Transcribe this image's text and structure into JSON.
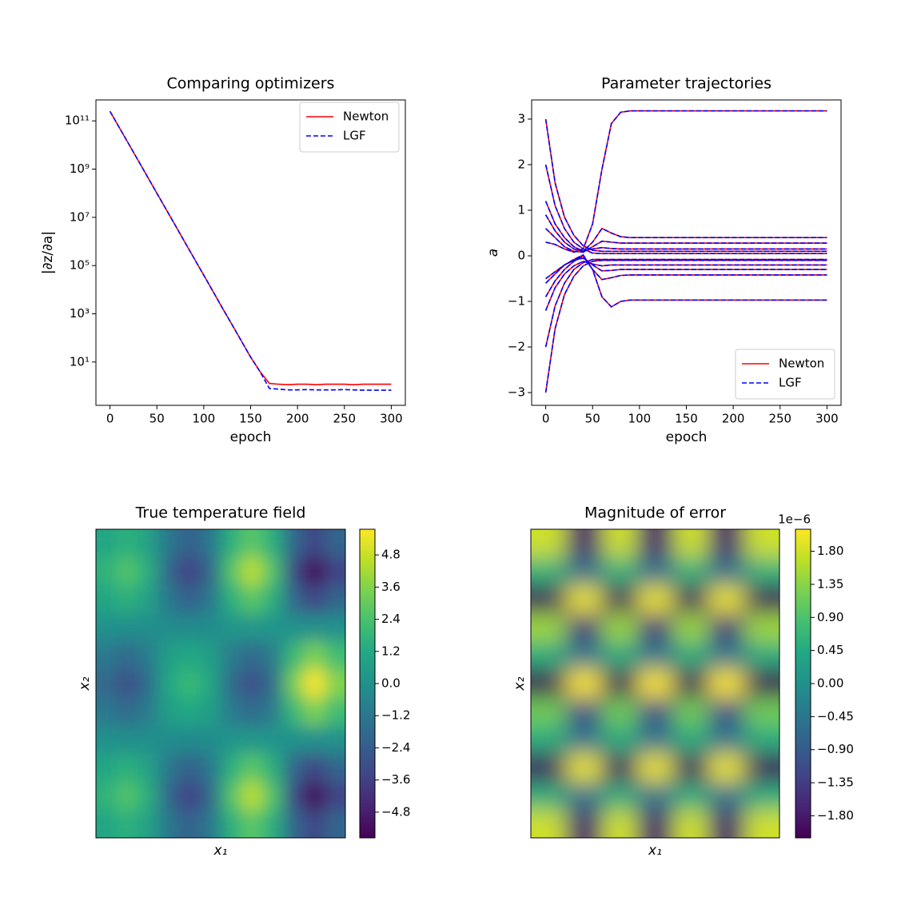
{
  "chart_data": [
    {
      "type": "line",
      "title": "Comparing optimizers",
      "xlabel": "epoch",
      "ylabel": "|∂z/∂a|",
      "yscale": "log",
      "legend": "upper right",
      "x": [
        0,
        10,
        20,
        30,
        40,
        50,
        60,
        70,
        80,
        90,
        100,
        110,
        120,
        130,
        140,
        150,
        160,
        170,
        180,
        190,
        200,
        210,
        220,
        230,
        240,
        250,
        260,
        270,
        280,
        290,
        300
      ],
      "series": [
        {
          "name": "Newton",
          "color": "#ff0000",
          "linestyle": "solid",
          "values": [
            250000000000.0,
            52000000000.0,
            11000000000.0,
            2300000000.0,
            480000000.0,
            100000000.0,
            21000000.0,
            4400000.0,
            910000.0,
            190000.0,
            40000.0,
            8300,
            1700,
            363,
            76,
            16,
            4,
            1.3,
            1.2,
            1.15,
            1.2,
            1.2,
            1.15,
            1.2,
            1.2,
            1.2,
            1.15,
            1.2,
            1.2,
            1.2,
            1.2
          ]
        },
        {
          "name": "LGF",
          "color": "#0000ff",
          "linestyle": "dashed",
          "values": [
            250000000000.0,
            52000000000.0,
            11000000000.0,
            2300000000.0,
            480000000.0,
            100000000.0,
            21000000.0,
            4400000.0,
            910000.0,
            190000.0,
            40000.0,
            8300,
            1700,
            363,
            76,
            16,
            4,
            0.8,
            0.75,
            0.7,
            0.7,
            0.72,
            0.7,
            0.7,
            0.7,
            0.72,
            0.7,
            0.68,
            0.68,
            0.68,
            0.68
          ]
        }
      ],
      "xlim": [
        -15,
        315
      ],
      "ylim": [
        0.16,
        740000000000.0
      ],
      "xticks": [
        0,
        50,
        100,
        150,
        200,
        250,
        300
      ],
      "yticks": [
        {
          "value": 10,
          "label": "10¹"
        },
        {
          "value": 1000,
          "label": "10³"
        },
        {
          "value": 100000,
          "label": "10⁵"
        },
        {
          "value": 10000000,
          "label": "10⁷"
        },
        {
          "value": 1000000000,
          "label": "10⁹"
        },
        {
          "value": 100000000000,
          "label": "10¹¹"
        }
      ]
    },
    {
      "type": "line",
      "title": "Parameter trajectories",
      "xlabel": "epoch",
      "ylabel": "a",
      "yscale": "linear",
      "legend": "lower right",
      "x": [
        0,
        10,
        20,
        30,
        40,
        50,
        60,
        70,
        80,
        90,
        100,
        150,
        200,
        250,
        300
      ],
      "series": [
        {
          "name": "Newton",
          "color": "#ff0000",
          "linestyle": "solid",
          "values": [
            [
              0.3,
              0.25,
              0.15,
              0.08,
              0.15,
              0.7,
              1.9,
              2.9,
              3.15,
              3.18,
              3.18,
              3.18,
              3.18,
              3.18,
              3.18
            ],
            [
              -0.5,
              -0.35,
              -0.2,
              -0.08,
              0.02,
              -0.3,
              -0.9,
              -1.12,
              -1.0,
              -0.97,
              -0.97,
              -0.97,
              -0.97,
              -0.97,
              -0.97
            ],
            [
              0.9,
              0.55,
              0.3,
              0.15,
              0.1,
              0.3,
              0.6,
              0.5,
              0.42,
              0.4,
              0.4,
              0.4,
              0.4,
              0.4,
              0.4
            ],
            [
              -0.9,
              -0.55,
              -0.3,
              -0.12,
              0,
              -0.3,
              -0.52,
              -0.48,
              -0.43,
              -0.42,
              -0.42,
              -0.42,
              -0.42,
              -0.42,
              -0.42
            ],
            [
              0.6,
              0.4,
              0.2,
              0.1,
              0.08,
              0.2,
              0.32,
              0.3,
              0.28,
              0.28,
              0.28,
              0.28,
              0.28,
              0.28,
              0.28
            ],
            [
              -0.6,
              -0.4,
              -0.2,
              -0.1,
              -0.05,
              -0.2,
              -0.33,
              -0.32,
              -0.3,
              -0.3,
              -0.3,
              -0.3,
              -0.3,
              -0.3,
              -0.3
            ],
            [
              3,
              1.6,
              0.85,
              0.45,
              0.22,
              0.12,
              0.1,
              0.1,
              0.1,
              0.1,
              0.1,
              0.1,
              0.1,
              0.1,
              0.1
            ],
            [
              -3,
              -1.6,
              -0.85,
              -0.45,
              -0.22,
              -0.12,
              -0.1,
              -0.1,
              -0.1,
              -0.1,
              -0.1,
              -0.1,
              -0.1,
              -0.1,
              -0.1
            ],
            [
              2,
              1.1,
              0.6,
              0.3,
              0.15,
              0.06,
              0.05,
              0.05,
              0.05,
              0.05,
              0.05,
              0.05,
              0.05,
              0.05,
              0.05
            ],
            [
              -2,
              -1.1,
              -0.6,
              -0.3,
              -0.15,
              -0.08,
              -0.08,
              -0.08,
              -0.08,
              -0.08,
              -0.08,
              -0.08,
              -0.08,
              -0.08,
              -0.08
            ],
            [
              1.2,
              0.7,
              0.4,
              0.2,
              0.1,
              0.15,
              0.18,
              0.16,
              0.15,
              0.15,
              0.15,
              0.15,
              0.15,
              0.15,
              0.15
            ],
            [
              -1.2,
              -0.7,
              -0.4,
              -0.22,
              -0.12,
              -0.18,
              -0.22,
              -0.2,
              -0.2,
              -0.2,
              -0.2,
              -0.2,
              -0.2,
              -0.2,
              -0.2
            ]
          ]
        },
        {
          "name": "LGF",
          "color": "#0000ff",
          "linestyle": "dashed",
          "values": [
            [
              0.3,
              0.25,
              0.15,
              0.08,
              0.15,
              0.7,
              1.9,
              2.9,
              3.15,
              3.18,
              3.18,
              3.18,
              3.18,
              3.18,
              3.18
            ],
            [
              -0.5,
              -0.35,
              -0.2,
              -0.08,
              0.02,
              -0.3,
              -0.9,
              -1.12,
              -1.0,
              -0.97,
              -0.97,
              -0.97,
              -0.97,
              -0.97,
              -0.97
            ],
            [
              0.9,
              0.55,
              0.3,
              0.15,
              0.1,
              0.3,
              0.6,
              0.5,
              0.42,
              0.4,
              0.4,
              0.4,
              0.4,
              0.4,
              0.4
            ],
            [
              -0.9,
              -0.55,
              -0.3,
              -0.12,
              0,
              -0.3,
              -0.52,
              -0.48,
              -0.43,
              -0.42,
              -0.42,
              -0.42,
              -0.42,
              -0.42,
              -0.42
            ],
            [
              0.6,
              0.4,
              0.2,
              0.1,
              0.08,
              0.2,
              0.32,
              0.3,
              0.28,
              0.28,
              0.28,
              0.28,
              0.28,
              0.28,
              0.28
            ],
            [
              -0.6,
              -0.4,
              -0.2,
              -0.1,
              -0.05,
              -0.2,
              -0.33,
              -0.32,
              -0.3,
              -0.3,
              -0.3,
              -0.3,
              -0.3,
              -0.3,
              -0.3
            ],
            [
              3,
              1.6,
              0.85,
              0.45,
              0.22,
              0.12,
              0.1,
              0.1,
              0.1,
              0.1,
              0.1,
              0.1,
              0.1,
              0.1,
              0.1
            ],
            [
              -3,
              -1.6,
              -0.85,
              -0.45,
              -0.22,
              -0.12,
              -0.1,
              -0.1,
              -0.1,
              -0.1,
              -0.1,
              -0.1,
              -0.1,
              -0.1,
              -0.1
            ],
            [
              2,
              1.1,
              0.6,
              0.3,
              0.15,
              0.06,
              0.05,
              0.05,
              0.05,
              0.05,
              0.05,
              0.05,
              0.05,
              0.05,
              0.05
            ],
            [
              -2,
              -1.1,
              -0.6,
              -0.3,
              -0.15,
              -0.08,
              -0.08,
              -0.08,
              -0.08,
              -0.08,
              -0.08,
              -0.08,
              -0.08,
              -0.08,
              -0.08
            ],
            [
              1.2,
              0.7,
              0.4,
              0.2,
              0.1,
              0.15,
              0.18,
              0.16,
              0.15,
              0.15,
              0.15,
              0.15,
              0.15,
              0.15,
              0.15
            ],
            [
              -1.2,
              -0.7,
              -0.4,
              -0.22,
              -0.12,
              -0.18,
              -0.22,
              -0.2,
              -0.2,
              -0.2,
              -0.2,
              -0.2,
              -0.2,
              -0.2,
              -0.2
            ]
          ]
        }
      ],
      "xlim": [
        -15,
        315
      ],
      "ylim": [
        -3.28,
        3.42
      ],
      "xticks": [
        0,
        50,
        100,
        150,
        200,
        250,
        300
      ],
      "yticks": [
        {
          "value": -3,
          "label": "−3"
        },
        {
          "value": -2,
          "label": "−2"
        },
        {
          "value": -1,
          "label": "−1"
        },
        0,
        1,
        2,
        3
      ]
    },
    {
      "type": "heatmap",
      "title": "True temperature field",
      "xlabel": "x₁",
      "ylabel": "x₂",
      "colormap": "viridis",
      "z": [
        [
          1.0,
          1.6,
          0.8,
          -1.2,
          -2.2,
          -1.2,
          1.5,
          2.8,
          1.5,
          -1.9,
          -3.4,
          -2.0
        ],
        [
          1.6,
          2.6,
          1.4,
          -2.0,
          -3.6,
          -2.0,
          2.5,
          4.6,
          2.5,
          -3.1,
          -5.6,
          -3.4
        ],
        [
          1.0,
          1.6,
          0.8,
          -1.2,
          -2.2,
          -1.2,
          1.5,
          2.8,
          1.5,
          -1.9,
          -3.4,
          -2.0
        ],
        [
          0,
          -0.1,
          -0.1,
          -0.2,
          -0.3,
          -0.2,
          0.2,
          0.3,
          0.2,
          0,
          0,
          0
        ],
        [
          -1.1,
          -1.8,
          -1.0,
          0.7,
          1.2,
          0.7,
          -1.0,
          -1.8,
          -1.0,
          1.9,
          3.5,
          2.1
        ],
        [
          -1.8,
          -3.0,
          -1.7,
          1.1,
          2.0,
          1.1,
          -1.7,
          -3.0,
          -1.7,
          3.2,
          5.8,
          3.5
        ],
        [
          -1.1,
          -1.8,
          -1.0,
          0.7,
          1.2,
          0.7,
          -1.0,
          -1.8,
          -1.0,
          1.9,
          3.5,
          2.1
        ],
        [
          0,
          -0.1,
          -0.1,
          -0.2,
          -0.3,
          -0.2,
          0.2,
          0.3,
          0.2,
          0,
          0,
          0
        ],
        [
          1.0,
          1.6,
          0.8,
          -1.2,
          -2.2,
          -1.2,
          1.5,
          2.8,
          1.5,
          -1.9,
          -3.4,
          -2.0
        ],
        [
          1.6,
          2.6,
          1.4,
          -2.0,
          -3.6,
          -2.0,
          2.5,
          4.6,
          2.5,
          -3.1,
          -5.6,
          -3.4
        ],
        [
          1.0,
          1.6,
          0.8,
          -1.2,
          -2.2,
          -1.2,
          1.5,
          2.8,
          1.5,
          -1.9,
          -3.4,
          -2.0
        ]
      ],
      "zlim": [
        -5.76,
        5.76
      ],
      "colorbar_ticks": [
        {
          "value": -4.8,
          "label": "−4.8"
        },
        {
          "value": -3.6,
          "label": "−3.6"
        },
        {
          "value": -2.4,
          "label": "−2.4"
        },
        {
          "value": -1.2,
          "label": "−1.2"
        },
        {
          "value": 0,
          "label": "0.0"
        },
        1.2,
        2.4,
        3.6,
        4.8
      ]
    },
    {
      "type": "heatmap",
      "title": "Magnitude of error",
      "xlabel": "x₁",
      "ylabel": "x₂",
      "colormap": "viridis",
      "colorbar_offset": "1e−6",
      "z": [
        [
          1.8,
          -1.8,
          1.8,
          -1.8,
          1.8,
          -1.8,
          1.8
        ],
        [
          0.6,
          -0.6,
          0.6,
          -0.6,
          0.6,
          -0.6,
          0.6
        ],
        [
          -2.0,
          2.0,
          -2.0,
          2.0,
          -2.0,
          2.0,
          -2.0
        ],
        [
          1.5,
          -1.5,
          1.5,
          -1.5,
          1.5,
          -1.5,
          1.5
        ],
        [
          0.5,
          -0.5,
          0.5,
          -0.5,
          0.5,
          -0.5,
          0.5
        ],
        [
          -2.1,
          2.1,
          -2.1,
          2.1,
          -2.1,
          2.1,
          -2.1
        ],
        [
          1.2,
          -1.2,
          1.2,
          -1.2,
          1.2,
          -1.2,
          1.2
        ],
        [
          0.5,
          -0.5,
          0.5,
          -0.5,
          0.5,
          -0.5,
          0.5
        ],
        [
          -2.0,
          2.0,
          -2.0,
          2.0,
          -2.0,
          2.0,
          -2.0
        ],
        [
          0.5,
          -0.5,
          0.5,
          -0.5,
          0.5,
          -0.5,
          0.5
        ],
        [
          1.8,
          -1.8,
          1.8,
          -1.8,
          1.8,
          -1.8,
          1.8
        ]
      ],
      "zlim": [
        -2.1,
        2.1
      ],
      "colorbar_ticks": [
        {
          "value": -1.8,
          "label": "−1.80"
        },
        {
          "value": -1.35,
          "label": "−1.35"
        },
        {
          "value": -0.9,
          "label": "−0.90"
        },
        {
          "value": -0.45,
          "label": "−0.45"
        },
        {
          "value": 0,
          "label": "0.00"
        },
        0.45,
        {
          "value": 0.9,
          "label": "0.90"
        },
        1.35,
        {
          "value": 1.8,
          "label": "1.80"
        }
      ]
    }
  ]
}
